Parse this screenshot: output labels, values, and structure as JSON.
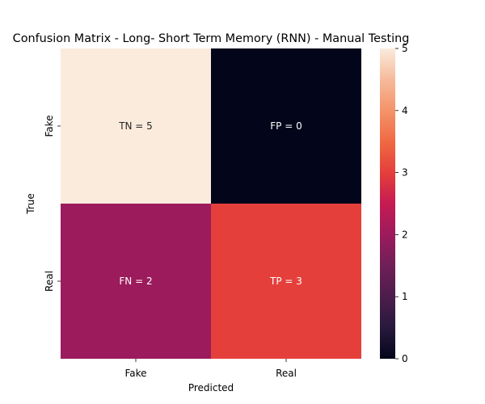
{
  "chart_data": {
    "type": "heatmap",
    "title": "Confusion Matrix - Long- Short Term Memory (RNN) - Manual Testing",
    "xlabel": "Predicted",
    "ylabel": "True",
    "x_categories": [
      "Fake",
      "Real"
    ],
    "y_categories": [
      "Fake",
      "Real"
    ],
    "values": [
      [
        5,
        0
      ],
      [
        2,
        3
      ]
    ],
    "cell_labels": [
      [
        "TN = 5",
        "FP = 0"
      ],
      [
        "FN = 2",
        "TP = 3"
      ]
    ],
    "colorbar": {
      "min": 0,
      "max": 5,
      "ticks": [
        "0",
        "1",
        "2",
        "3",
        "4",
        "5"
      ]
    },
    "colormap": "rocket",
    "grid": false,
    "legend": "colorbar-right"
  }
}
